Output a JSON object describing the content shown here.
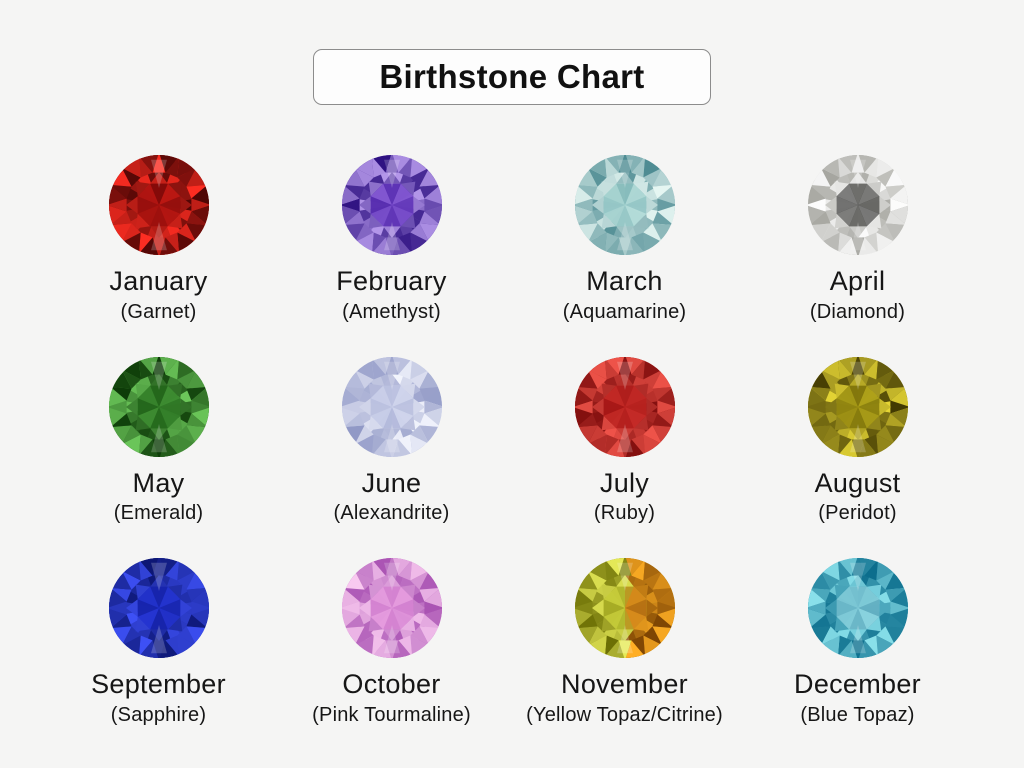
{
  "page": {
    "background": "#f5f5f4",
    "text_color": "#161616"
  },
  "title": {
    "label": "Birthstone Chart",
    "box_border": "#8c8c8c",
    "box_background": "#fdfdfd"
  },
  "gems": [
    {
      "month": "January",
      "stone": "(Garnet)",
      "colors": {
        "dark": "#3f0202",
        "light": "#ff2d22",
        "center": "#ad0c0c"
      }
    },
    {
      "month": "February",
      "stone": "(Amethyst)",
      "colors": {
        "dark": "#2f1282",
        "light": "#b79aec",
        "center": "#6c31d2"
      }
    },
    {
      "month": "March",
      "stone": "(Aquamarine)",
      "colors": {
        "dark": "#4f8c93",
        "light": "#e8f8f4",
        "center": "#a3dbd5"
      }
    },
    {
      "month": "April",
      "stone": "(Diamond)",
      "colors": {
        "dark": "#a3a39d",
        "light": "#ffffff",
        "center": "#ececе8"
      }
    },
    {
      "month": "May",
      "stone": "(Emerald)",
      "colors": {
        "dark": "#0c3a07",
        "light": "#6cc75a",
        "center": "#2a7c21"
      }
    },
    {
      "month": "June",
      "stone": "(Alexandrite)",
      "colors": {
        "dark": "#8d95c4",
        "light": "#f5f7fe",
        "center": "#ced4ee"
      }
    },
    {
      "month": "July",
      "stone": "(Ruby)",
      "colors": {
        "dark": "#7e0c0c",
        "light": "#f0544a",
        "center": "#c11717"
      }
    },
    {
      "month": "August",
      "stone": "(Peridot)",
      "colors": {
        "dark": "#423a02",
        "light": "#e8d836",
        "center": "#a4970a"
      }
    },
    {
      "month": "September",
      "stone": "(Sapphire)",
      "colors": {
        "dark": "#071066",
        "light": "#3d50f5",
        "center": "#1e2fe2"
      }
    },
    {
      "month": "October",
      "stone": "(Pink Tourmaline)",
      "colors": {
        "dark": "#a851b2",
        "light": "#f9c9f0",
        "center": "#e78cdd"
      }
    },
    {
      "month": "November",
      "stone": "(Yellow Topaz/Citrine)",
      "colors": {
        "dark": "#6b6e04",
        "light": "#ecf05c",
        "center": "#ccd435"
      },
      "colors2": {
        "dark": "#7a4202",
        "light": "#ffae24",
        "center": "#e18f1e"
      }
    },
    {
      "month": "December",
      "stone": "(Blue Topaz)",
      "colors": {
        "dark": "#0b6d8c",
        "light": "#96ecf4",
        "center": "#b2e7ee"
      }
    }
  ]
}
